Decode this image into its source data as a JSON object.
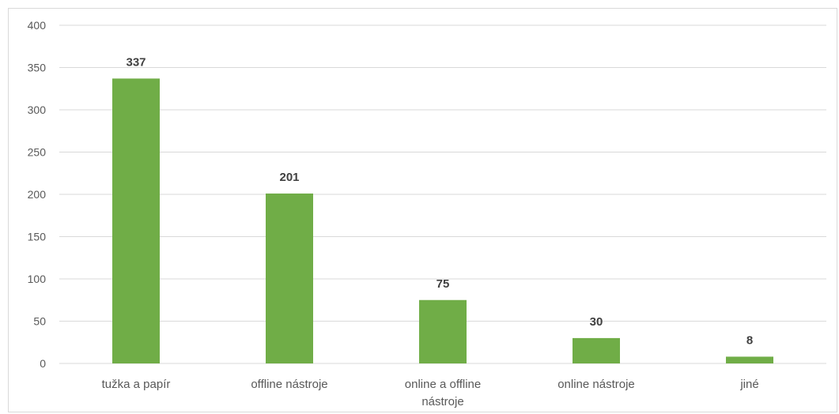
{
  "colors": {
    "bar": "#70ad47",
    "grid": "#d9d9d9",
    "axis_text": "#595959",
    "data_label": "#404040"
  },
  "chart_data": {
    "type": "bar",
    "title": "",
    "xlabel": "",
    "ylabel": "",
    "categories": [
      [
        "tužka a papír"
      ],
      [
        "offline nástroje"
      ],
      [
        "online a offline",
        "nástroje"
      ],
      [
        "online nástroje"
      ],
      [
        "jiné"
      ]
    ],
    "values": [
      337,
      201,
      75,
      30,
      8
    ],
    "data_labels": [
      "337",
      "201",
      "75",
      "30",
      "8"
    ],
    "yticks": [
      "0",
      "50",
      "100",
      "150",
      "200",
      "250",
      "300",
      "350",
      "400"
    ],
    "ylim": [
      0,
      400
    ],
    "grid": true,
    "legend": "none"
  }
}
